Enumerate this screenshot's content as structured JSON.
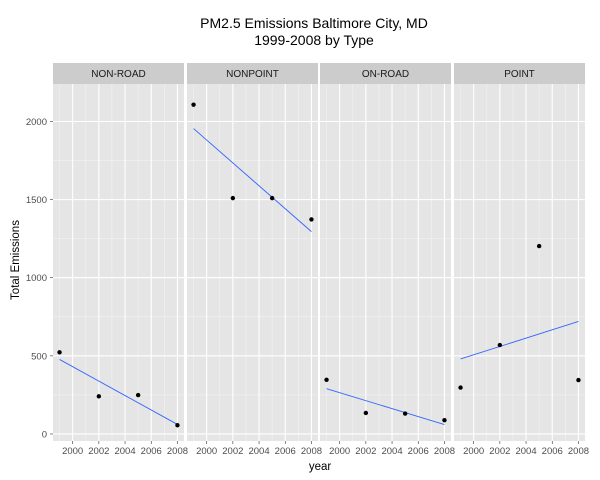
{
  "chart_data": {
    "type": "scatter",
    "title_line1": "PM2.5 Emissions Baltimore City, MD",
    "title_line2": "1999-2008 by Type",
    "xlabel": "year",
    "ylabel": "Total Emissions",
    "xlim": [
      1998.5,
      2008.5
    ],
    "ylim": [
      -45,
      2240
    ],
    "x_ticks": [
      2000,
      2002,
      2004,
      2006,
      2008
    ],
    "y_ticks": [
      0,
      500,
      1000,
      1500,
      2000
    ],
    "grid": true,
    "legend": "none",
    "trend_line": "linear fit per panel",
    "colors": {
      "panel_background": "#E5E5E5",
      "strip_background": "#CCCCCC",
      "grid_major": "#FFFFFF",
      "grid_minor": "#F2F2F2",
      "points": "#000000",
      "trend": "#3366FF"
    },
    "facets": [
      {
        "name": "NON-ROAD",
        "points": [
          {
            "x": 1999,
            "y": 522.94
          },
          {
            "x": 2002,
            "y": 240.85
          },
          {
            "x": 2005,
            "y": 248.93
          },
          {
            "x": 2008,
            "y": 55.82
          }
        ],
        "trend": [
          {
            "x": 1999,
            "y": 477
          },
          {
            "x": 2008,
            "y": 61
          }
        ]
      },
      {
        "name": "NONPOINT",
        "points": [
          {
            "x": 1999,
            "y": 2107.63
          },
          {
            "x": 2002,
            "y": 1509.5
          },
          {
            "x": 2005,
            "y": 1509.5
          },
          {
            "x": 2008,
            "y": 1373.21
          }
        ],
        "trend": [
          {
            "x": 1999,
            "y": 1955
          },
          {
            "x": 2008,
            "y": 1295
          }
        ]
      },
      {
        "name": "ON-ROAD",
        "points": [
          {
            "x": 1999,
            "y": 346.82
          },
          {
            "x": 2002,
            "y": 134.31
          },
          {
            "x": 2005,
            "y": 130.43
          },
          {
            "x": 2008,
            "y": 88.28
          }
        ],
        "trend": [
          {
            "x": 1999,
            "y": 290
          },
          {
            "x": 2008,
            "y": 60
          }
        ]
      },
      {
        "name": "POINT",
        "points": [
          {
            "x": 1999,
            "y": 296.8
          },
          {
            "x": 2002,
            "y": 569.26
          },
          {
            "x": 2005,
            "y": 1202.49
          },
          {
            "x": 2008,
            "y": 344.98
          }
        ],
        "trend": [
          {
            "x": 1999,
            "y": 480
          },
          {
            "x": 2008,
            "y": 720
          }
        ]
      }
    ]
  }
}
